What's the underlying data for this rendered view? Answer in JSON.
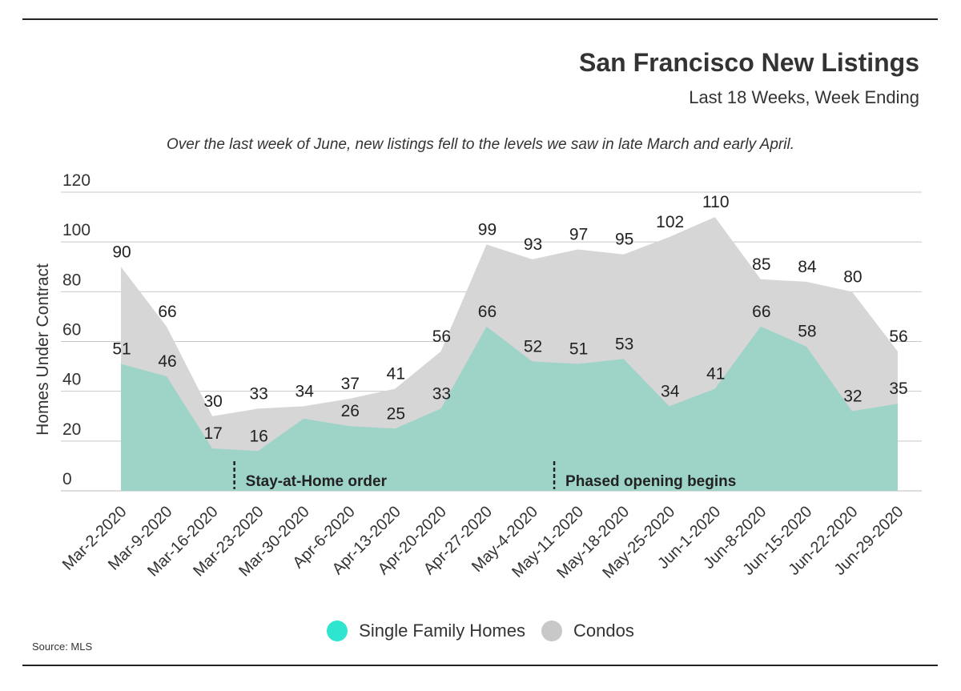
{
  "header": {
    "title": "San Francisco New Listings",
    "subtitle": "Last 18 Weeks, Week Ending",
    "annotation": "Over the last week of June, new listings fell to the levels we saw in late March and early April."
  },
  "source": "Source: MLS",
  "chart_data": {
    "type": "area",
    "ylabel": "Homes Under Contract",
    "ylim": [
      0,
      120
    ],
    "yticks": [
      0,
      20,
      40,
      60,
      80,
      100,
      120
    ],
    "grid": true,
    "legend_position": "bottom-center",
    "categories": [
      "Mar-2-2020",
      "Mar-9-2020",
      "Mar-16-2020",
      "Mar-23-2020",
      "Mar-30-2020",
      "Apr-6-2020",
      "Apr-13-2020",
      "Apr-20-2020",
      "Apr-27-2020",
      "May-4-2020",
      "May-11-2020",
      "May-18-2020",
      "May-25-2020",
      "Jun-1-2020",
      "Jun-8-2020",
      "Jun-15-2020",
      "Jun-22-2020",
      "Jun-29-2020"
    ],
    "series": [
      {
        "name": "Single Family Homes",
        "color": "#9ed3c7",
        "legend_color": "#2ee6cf",
        "values": [
          51,
          46,
          17,
          16,
          29,
          26,
          25,
          33,
          66,
          52,
          51,
          53,
          34,
          41,
          66,
          58,
          32,
          35
        ],
        "labels": [
          "51",
          "46",
          "17",
          "16",
          "",
          "26",
          "25",
          "33",
          "66",
          "52",
          "51",
          "53",
          "34",
          "41",
          "66",
          "58",
          "32",
          "35"
        ]
      },
      {
        "name": "Condos",
        "color": "#d6d6d6",
        "legend_color": "#c8c8c8",
        "values": [
          90,
          66,
          30,
          33,
          34,
          37,
          41,
          56,
          99,
          93,
          97,
          95,
          102,
          110,
          85,
          84,
          80,
          56
        ],
        "labels": [
          "90",
          "66",
          "30",
          "33",
          "34",
          "37",
          "41",
          "56",
          "99",
          "93",
          "97",
          "95",
          "102",
          "110",
          "85",
          "84",
          "80",
          "56"
        ]
      }
    ],
    "events": [
      {
        "label": "Stay-at-Home order",
        "x": "Mar-23-2020"
      },
      {
        "label": "Phased opening begins",
        "x": "May-11-2020"
      }
    ]
  }
}
